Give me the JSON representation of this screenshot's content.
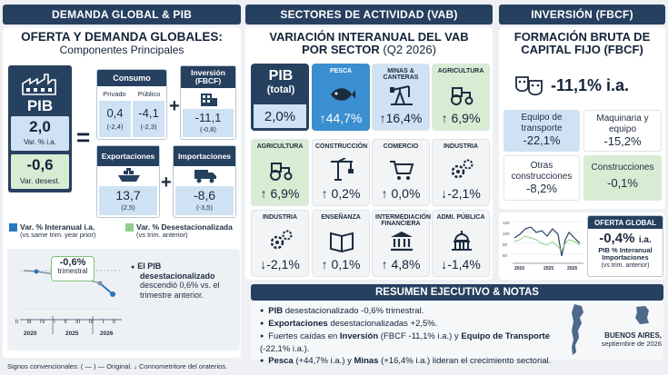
{
  "headers": {
    "left": "DEMANDA GLOBAL & PIB",
    "center": "SECTORES DE ACTIVIDAD (VAB)",
    "right": "INVERSIÓN (FBCF)"
  },
  "left": {
    "title": "OFERTA Y DEMANDA GLOBALES:",
    "subtitle": "Componentes Principales",
    "pib": {
      "label": "PIB",
      "value": "2,0",
      "value_label": "Var. % i.a.",
      "desest": "-0,6",
      "desest_label": "Var. desest."
    },
    "equals": "=",
    "plus1": "+",
    "plus2": "+",
    "consumo": {
      "label": "Consumo",
      "privado": {
        "label": "Privado",
        "value": "0,4",
        "desest": "(-2,4)"
      },
      "publico": {
        "label": "Público",
        "value": "-4,1",
        "desest": "(-2,3)"
      }
    },
    "inversion": {
      "label": "Inversión (FBCF)",
      "value": "-11,1",
      "desest": "(-0,8)"
    },
    "exportaciones": {
      "label": "Exportaciones",
      "value": "13,7",
      "desest": "(2,5)"
    },
    "importaciones": {
      "label": "Importaciones",
      "value": "-8,6",
      "desest": "(-3,5)"
    },
    "legend": {
      "blue_label": "Var. % Interanual i.a.",
      "blue_note": "(vs same trim. year prior)",
      "green_label": "Var. % Desestacionalizada",
      "green_note": "(vs trim. anterior)",
      "blue_color": "#2a78c2",
      "green_color": "#8fcf8a"
    },
    "mini_chart": {
      "callout": "-0,6%",
      "callout_sub": "trimestral",
      "quarters": [
        "II",
        "III",
        "IV",
        "I",
        "II",
        "III",
        "IV",
        "I",
        "II"
      ],
      "years": [
        "2020",
        "2025",
        "2026"
      ]
    },
    "note": {
      "line1": "El PIB",
      "line2": "desestacionalizado",
      "line3": "descendió 0,6% vs. el",
      "line4": "trimestre anterior."
    },
    "footer": "Signos convencionales: ( — ) — Original.  ↓ Connometritore del oraterios."
  },
  "center": {
    "title": "VARIACIÓN INTERANUAL DEL VAB",
    "title2_bold": "POR SECTOR",
    "title2_rest": " (Q2 2026)",
    "pib_tile": {
      "label1": "PIB",
      "label2": "(total)",
      "value": "2,0%"
    },
    "tiles_row1": [
      {
        "label": "PESCA",
        "value": "↑44,7%",
        "icon": "fish-icon",
        "style": "hl"
      },
      {
        "label": "MINAS & CANTERAS",
        "value": "↑16,4%",
        "icon": "oil-pump-icon",
        "style": "blue"
      },
      {
        "label": "AGRICULTURA",
        "value": "↑ 6,9%",
        "icon": "tractor-icon",
        "style": "green"
      }
    ],
    "tiles_row2": [
      {
        "label": "AGRICULTURA",
        "value": "↑ 6,9%",
        "icon": "tractor-icon",
        "style": "green"
      },
      {
        "label": "CONSTRUCCIÓN",
        "value": "↑ 0,2%",
        "icon": "crane-icon",
        "style": ""
      },
      {
        "label": "COMERCIO",
        "value": "↑ 0,0%",
        "icon": "cart-icon",
        "style": ""
      },
      {
        "label": "INDUSTRIA",
        "value": "↓-2,1%",
        "icon": "gears-icon",
        "style": ""
      }
    ],
    "tiles_row3": [
      {
        "label": "INDUSTRIA",
        "value": "↓-2,1%",
        "icon": "gears-icon",
        "style": ""
      },
      {
        "label": "ENSEÑANZA",
        "value": "↑ 0,1%",
        "icon": "book-icon",
        "style": ""
      },
      {
        "label": "INTERMEDIACIÓN FINANCIERA",
        "value": "↑ 4,8%",
        "icon": "bank-icon",
        "style": ""
      },
      {
        "label": "ADMI. PÚBLICA",
        "value": "↓-1,4%",
        "icon": "capitol-icon",
        "style": ""
      }
    ]
  },
  "right": {
    "title1": "FORMACIÓN BRUTA DE",
    "title2": "CAPITAL FIJO (FBCF)",
    "total": "-11,1% i.a.",
    "cells": [
      {
        "label": "Equipo de transporte",
        "value": "-22,1%",
        "style": "blue"
      },
      {
        "label": "Maquinaria y equipo",
        "value": "-15,2%",
        "style": "white"
      },
      {
        "label": "Otras construcciones",
        "value": "-8,2%",
        "style": "white"
      },
      {
        "label": "Construcciones",
        "value": "-0,1%",
        "style": "green"
      }
    ],
    "oferta": {
      "title": "OFERTA GLOBAL",
      "value": "-0,4%",
      "unit": "i.a.",
      "line1": "PIB % Interanual",
      "line2": "Importaciones",
      "line3": "(vs trim. anterior)"
    },
    "chart_years": [
      "2020",
      "2025",
      "2026"
    ],
    "chart_ticks": [
      "120",
      "100",
      "80",
      "60"
    ]
  },
  "resumen": {
    "title": "RESUMEN EJECUTIVO & NOTAS",
    "b1_bold": "PIB",
    "b1_rest": " desestacionalizado -0,6% trimestral.",
    "b2_bold": "Exportaciones",
    "b2_rest": " desestacionalizadas +2,5%.",
    "b3_pre": "Fuertes caídas en ",
    "b3_bold1": "Inversión",
    "b3_mid": " (FBCF -11,1% i.a.) y ",
    "b3_bold2": "Equipo de Transporte",
    "b3_post": " (-22,1% i.a.).",
    "b4_bold1": "Pesca",
    "b4_mid": " (+44,7% i.a.) y ",
    "b4_bold2": "Minas",
    "b4_post": " (+16,4% i.a.) lideran el crecimiento sectorial.",
    "place": "BUENOS AIRES,",
    "date": "septiembre de 2026"
  }
}
